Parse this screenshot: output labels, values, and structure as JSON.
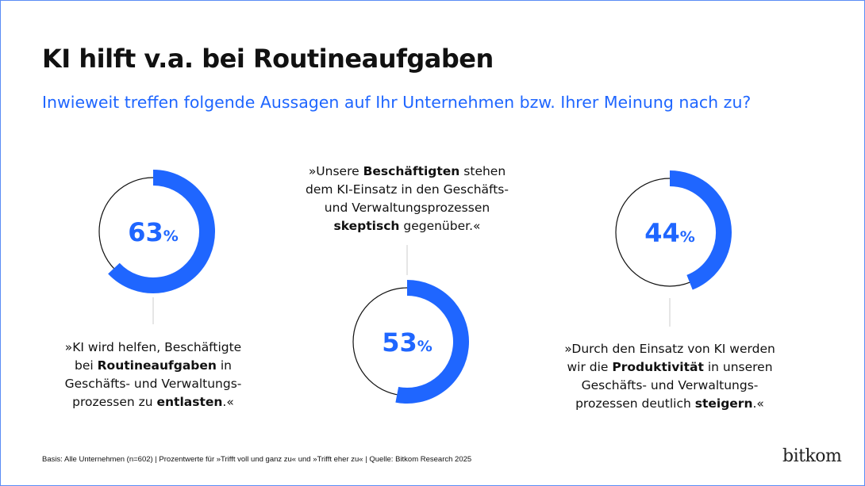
{
  "header": {
    "title": "KI hilft v.a. bei Routineaufgaben",
    "subtitle": "Inwieweit treffen folgende Aussagen auf Ihr Unternehmen bzw. Ihrer Meinung nach zu?"
  },
  "chart_data": [
    {
      "type": "pie",
      "variant": "donut",
      "value": 63,
      "unit": "%",
      "color": "#1f66ff",
      "statement": [
        "»KI wird helfen, Beschäftigte",
        "bei ",
        "Routineaufgaben",
        " in",
        "Geschäfts- und Verwaltungs-",
        "prozessen zu ",
        "entlasten",
        ".«"
      ]
    },
    {
      "type": "pie",
      "variant": "donut",
      "value": 53,
      "unit": "%",
      "color": "#1f66ff",
      "statement": [
        "»Unsere ",
        "Beschäftigten",
        " stehen",
        "dem KI-Einsatz in den Geschäfts-",
        "und Verwaltungsprozessen",
        "skeptisch",
        " gegenüber.«"
      ]
    },
    {
      "type": "pie",
      "variant": "donut",
      "value": 44,
      "unit": "%",
      "color": "#1f66ff",
      "statement": [
        "»Durch den Einsatz von KI werden",
        "wir die ",
        "Produktivität",
        " in unseren",
        "Geschäfts- und Verwaltungs-",
        "prozessen deutlich ",
        "steigern",
        ".«"
      ]
    }
  ],
  "footer": {
    "note": "Basis: Alle Unternehmen (n=602) | Prozentwerte für »Trifft voll und ganz zu« und »Trifft eher zu« | Quelle: Bitkom Research 2025",
    "logo": "bitkom"
  }
}
